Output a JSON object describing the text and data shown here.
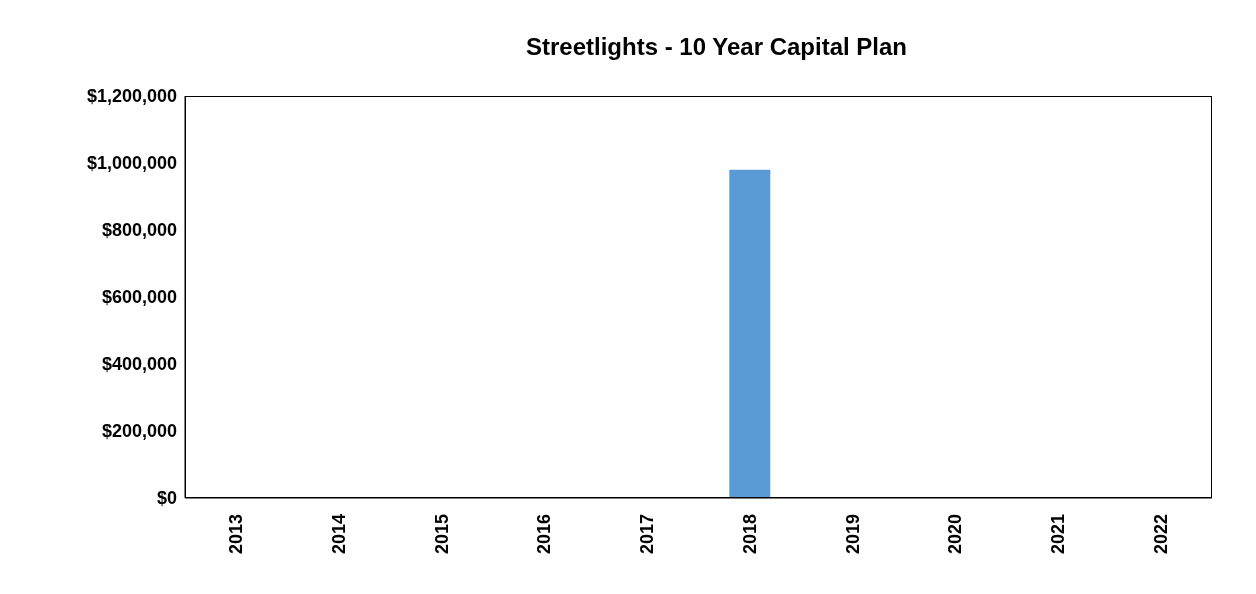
{
  "chart_data": {
    "type": "bar",
    "title": "Streetlights - 10 Year Capital Plan",
    "categories": [
      "2013",
      "2014",
      "2015",
      "2016",
      "2017",
      "2018",
      "2019",
      "2020",
      "2021",
      "2022"
    ],
    "values": [
      0,
      0,
      0,
      0,
      0,
      980000,
      0,
      0,
      0,
      0
    ],
    "color": "#5b9bd5",
    "ylim": [
      0,
      1200000
    ],
    "yticks": [
      {
        "value": 0,
        "label": "$0"
      },
      {
        "value": 200000,
        "label": "$200,000"
      },
      {
        "value": 400000,
        "label": "$400,000"
      },
      {
        "value": 600000,
        "label": "$600,000"
      },
      {
        "value": 800000,
        "label": "$800,000"
      },
      {
        "value": 1000000,
        "label": "$1,000,000"
      },
      {
        "value": 1200000,
        "label": "$1,200,000"
      }
    ],
    "grid": false,
    "legend": false
  }
}
